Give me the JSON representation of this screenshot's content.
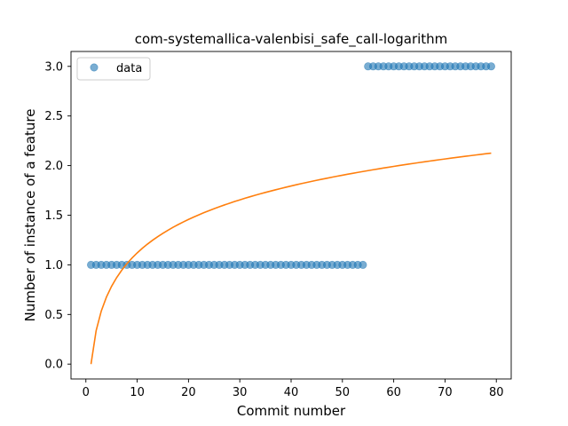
{
  "chart_data": {
    "type": "scatter",
    "title": "com-systemallica-valenbisi_safe_call-logarithm",
    "xlabel": "Commit number",
    "ylabel": "Number of instance of a feature",
    "xlim": [
      -2.9,
      82.9
    ],
    "ylim": [
      -0.15,
      3.15
    ],
    "xticks": [
      0,
      10,
      20,
      30,
      40,
      50,
      60,
      70,
      80
    ],
    "xtick_labels": [
      "0",
      "10",
      "20",
      "30",
      "40",
      "50",
      "60",
      "70",
      "80"
    ],
    "yticks": [
      0.0,
      0.5,
      1.0,
      1.5,
      2.0,
      2.5,
      3.0
    ],
    "ytick_labels": [
      "0.0",
      "0.5",
      "1.0",
      "1.5",
      "2.0",
      "2.5",
      "3.0"
    ],
    "legend": {
      "position": "upper-left",
      "entries": [
        "data"
      ]
    },
    "grid": false,
    "series": [
      {
        "name": "data",
        "kind": "scatter",
        "color": "#1f77b4",
        "segments": [
          {
            "x_start": 1,
            "x_end": 54,
            "y": 1
          },
          {
            "x_start": 55,
            "x_end": 79,
            "y": 3
          }
        ]
      },
      {
        "kind": "line",
        "color": "#ff7f0e",
        "function": "logarithmic fit y = a*ln(x)",
        "a": 0.4865,
        "x_start": 1,
        "x_end": 79
      }
    ]
  }
}
